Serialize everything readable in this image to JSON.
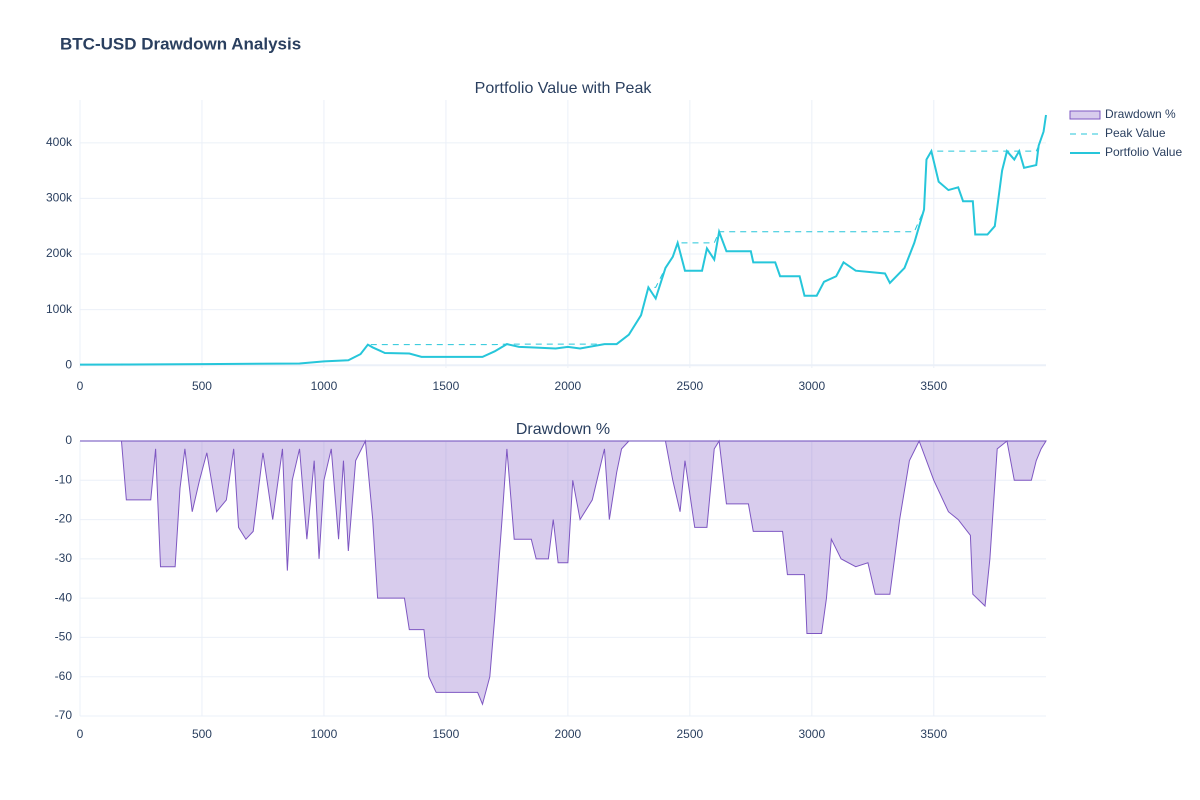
{
  "title": "BTC-USD Drawdown Analysis",
  "chart_data": [
    {
      "type": "line",
      "title": "Portfolio Value with Peak",
      "grid": true,
      "xlim": [
        0,
        3960
      ],
      "xticks": [
        0,
        500,
        1000,
        1500,
        2000,
        2500,
        3000,
        3500
      ],
      "ylim": [
        -5000,
        477000
      ],
      "yticks": [
        0,
        {
          "value": 100000,
          "label": "100k"
        },
        {
          "value": 200000,
          "label": "200k"
        },
        {
          "value": 300000,
          "label": "300k"
        },
        {
          "value": 400000,
          "label": "400k"
        }
      ],
      "x": [
        0,
        500,
        900,
        1000,
        1100,
        1150,
        1180,
        1200,
        1250,
        1350,
        1400,
        1650,
        1700,
        1750,
        1800,
        1850,
        1950,
        2000,
        2050,
        2150,
        2200,
        2250,
        2300,
        2330,
        2360,
        2400,
        2430,
        2450,
        2480,
        2550,
        2570,
        2600,
        2620,
        2650,
        2750,
        2760,
        2850,
        2870,
        2950,
        2970,
        3020,
        3050,
        3100,
        3130,
        3180,
        3300,
        3320,
        3380,
        3420,
        3460,
        3470,
        3490,
        3520,
        3560,
        3600,
        3620,
        3660,
        3670,
        3720,
        3750,
        3780,
        3800,
        3830,
        3850,
        3870,
        3920,
        3930,
        3950,
        3960
      ],
      "series": [
        {
          "name": "Peak Value",
          "color": "#26c6da",
          "dash": true,
          "values": [
            1000,
            2000,
            3000,
            7000,
            9000,
            20000,
            37000,
            37000,
            37000,
            37000,
            37000,
            37000,
            37000,
            38000,
            38000,
            38000,
            38000,
            38000,
            38000,
            38000,
            38000,
            55000,
            90000,
            140000,
            140000,
            175000,
            195000,
            220000,
            220000,
            220000,
            220000,
            220000,
            240000,
            240000,
            240000,
            240000,
            240000,
            240000,
            240000,
            240000,
            240000,
            240000,
            240000,
            240000,
            240000,
            240000,
            240000,
            240000,
            240000,
            280000,
            370000,
            385000,
            385000,
            385000,
            385000,
            385000,
            385000,
            385000,
            385000,
            385000,
            385000,
            385000,
            385000,
            385000,
            385000,
            385000,
            395000,
            420000,
            450000
          ]
        },
        {
          "name": "Portfolio Value",
          "color": "#26c6da",
          "dash": false,
          "values": [
            1000,
            2000,
            3000,
            7000,
            9000,
            20000,
            37000,
            32000,
            22000,
            21000,
            15000,
            15000,
            25000,
            38000,
            33000,
            32000,
            30000,
            33000,
            30000,
            38000,
            38000,
            55000,
            90000,
            140000,
            120000,
            175000,
            195000,
            220000,
            170000,
            170000,
            210000,
            190000,
            240000,
            205000,
            205000,
            185000,
            185000,
            160000,
            160000,
            125000,
            125000,
            150000,
            160000,
            185000,
            170000,
            165000,
            148000,
            175000,
            220000,
            280000,
            370000,
            385000,
            330000,
            315000,
            320000,
            295000,
            295000,
            235000,
            235000,
            250000,
            350000,
            385000,
            370000,
            385000,
            355000,
            360000,
            395000,
            420000,
            450000
          ]
        }
      ]
    },
    {
      "type": "area",
      "title": "Drawdown %",
      "grid": true,
      "xlim": [
        0,
        3960
      ],
      "xticks": [
        0,
        500,
        1000,
        1500,
        2000,
        2500,
        3000,
        3500
      ],
      "ylim": [
        -70,
        0
      ],
      "yticks": [
        0,
        -10,
        -20,
        -30,
        -40,
        -50,
        -60,
        -70
      ],
      "x": [
        0,
        170,
        190,
        290,
        310,
        330,
        390,
        410,
        430,
        460,
        490,
        520,
        560,
        600,
        630,
        650,
        680,
        710,
        750,
        790,
        830,
        850,
        870,
        900,
        930,
        960,
        980,
        1000,
        1030,
        1060,
        1080,
        1100,
        1130,
        1170,
        1200,
        1220,
        1330,
        1350,
        1410,
        1430,
        1460,
        1630,
        1650,
        1680,
        1700,
        1730,
        1750,
        1780,
        1850,
        1870,
        1920,
        1940,
        1960,
        2000,
        2020,
        2050,
        2100,
        2150,
        2170,
        2200,
        2220,
        2250,
        2400,
        2430,
        2460,
        2480,
        2520,
        2570,
        2600,
        2620,
        2650,
        2740,
        2760,
        2880,
        2900,
        2970,
        2980,
        3040,
        3060,
        3080,
        3120,
        3180,
        3230,
        3260,
        3320,
        3360,
        3400,
        3440,
        3500,
        3560,
        3600,
        3650,
        3660,
        3710,
        3730,
        3760,
        3800,
        3830,
        3900,
        3920,
        3940,
        3960
      ],
      "series": [
        {
          "name": "Drawdown %",
          "color": "#7e57c2",
          "values": [
            0,
            0,
            -15,
            -15,
            -2,
            -32,
            -32,
            -12,
            -2,
            -18,
            -10,
            -3,
            -18,
            -15,
            -2,
            -22,
            -25,
            -23,
            -3,
            -20,
            -2,
            -33,
            -10,
            -2,
            -25,
            -5,
            -30,
            -10,
            -2,
            -25,
            -5,
            -28,
            -5,
            0,
            -20,
            -40,
            -40,
            -48,
            -48,
            -60,
            -64,
            -64,
            -67,
            -60,
            -45,
            -20,
            -2,
            -25,
            -25,
            -30,
            -30,
            -20,
            -31,
            -31,
            -10,
            -20,
            -15,
            -2,
            -20,
            -8,
            -2,
            0,
            0,
            -10,
            -18,
            -5,
            -22,
            -22,
            -2,
            0,
            -16,
            -16,
            -23,
            -23,
            -34,
            -34,
            -49,
            -49,
            -40,
            -25,
            -30,
            -32,
            -31,
            -39,
            -39,
            -20,
            -5,
            0,
            -10,
            -18,
            -20,
            -24,
            -39,
            -42,
            -30,
            -2,
            0,
            -10,
            -10,
            -5,
            -2,
            0
          ]
        }
      ]
    }
  ]
}
